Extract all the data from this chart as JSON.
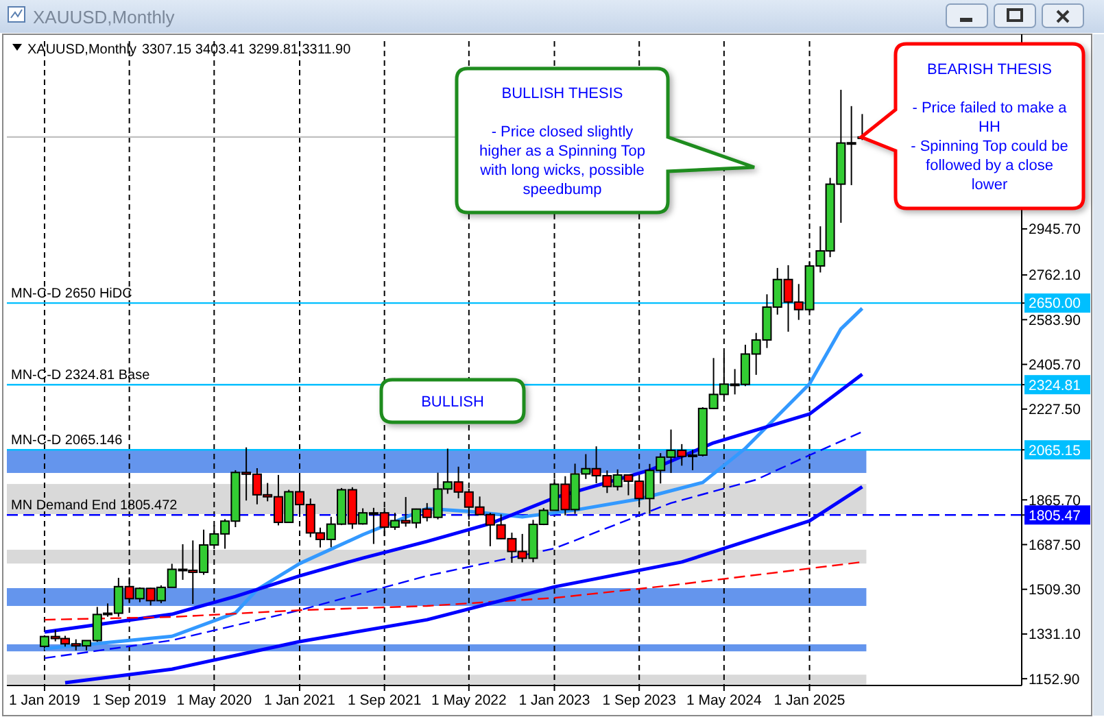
{
  "chart_data": {
    "type": "candlestick",
    "title": "XAUUSD,Monthly",
    "subtitle": "3307.15 3403.41 3299.81 3311.90",
    "colors": [
      "#33cc33",
      "#ff0000",
      "#ff0000",
      "#ff0000",
      "#33cc33",
      "#33cc33",
      "#33cc33",
      "#33cc33",
      "#ff0000",
      "#33cc33",
      "#ff0000",
      "#33cc33",
      "#33cc33",
      "#ff0000",
      "#ff0000",
      "#33cc33",
      "#33cc33",
      "#33cc33",
      "#33cc33",
      "#ff0000",
      "#ff0000",
      "#ff0000",
      "#ff0000",
      "#33cc33",
      "#ff0000",
      "#ff0000",
      "#ff0000",
      "#33cc33",
      "#33cc33",
      "#ff0000",
      "#33cc33",
      "#33cc33",
      "#ff0000",
      "#33cc33",
      "#ff0000",
      "#33cc33",
      "#ff0000",
      "#33cc33",
      "#33cc33",
      "#ff0000",
      "#ff0000",
      "#ff0000",
      "#ff0000",
      "#ff0000",
      "#ff0000",
      "#ff0000",
      "#33cc33",
      "#33cc33",
      "#33cc33",
      "#ff0000",
      "#33cc33",
      "#33cc33",
      "#ff0000",
      "#ff0000",
      "#33cc33",
      "#ff0000",
      "#ff0000",
      "#33cc33",
      "#33cc33",
      "#33cc33",
      "#ff0000",
      "#33cc33",
      "#33cc33",
      "#33cc33",
      "#33cc33",
      "#ff0000",
      "#33cc33",
      "#33cc33",
      "#33cc33",
      "#33cc33",
      "#ff0000",
      "#ff0000",
      "#33cc33",
      "#33cc33",
      "#33cc33",
      "#33cc33",
      "#33cc33",
      "#33cc33"
    ],
    "x": [
      "2019-01",
      "2019-02",
      "2019-03",
      "2019-04",
      "2019-05",
      "2019-06",
      "2019-07",
      "2019-08",
      "2019-09",
      "2019-10",
      "2019-11",
      "2019-12",
      "2020-01",
      "2020-02",
      "2020-03",
      "2020-04",
      "2020-05",
      "2020-06",
      "2020-07",
      "2020-08",
      "2020-09",
      "2020-10",
      "2020-11",
      "2020-12",
      "2021-01",
      "2021-02",
      "2021-03",
      "2021-04",
      "2021-05",
      "2021-06",
      "2021-07",
      "2021-08",
      "2021-09",
      "2021-10",
      "2021-11",
      "2021-12",
      "2022-01",
      "2022-02",
      "2022-03",
      "2022-04",
      "2022-05",
      "2022-06",
      "2022-07",
      "2022-08",
      "2022-09",
      "2022-10",
      "2022-11",
      "2022-12",
      "2023-01",
      "2023-02",
      "2023-03",
      "2023-04",
      "2023-05",
      "2023-06",
      "2023-07",
      "2023-08",
      "2023-09",
      "2023-10",
      "2023-11",
      "2023-12",
      "2024-01",
      "2024-02",
      "2024-03",
      "2024-04",
      "2024-05",
      "2024-06",
      "2024-07",
      "2024-08",
      "2024-09",
      "2024-10",
      "2024-11",
      "2024-12",
      "2025-01",
      "2025-02",
      "2025-03",
      "2025-04",
      "2025-05",
      "2025-06"
    ],
    "ohlc": [
      [
        1282,
        1326,
        1276,
        1321
      ],
      [
        1321,
        1347,
        1302,
        1313
      ],
      [
        1313,
        1324,
        1281,
        1292
      ],
      [
        1292,
        1310,
        1266,
        1284
      ],
      [
        1284,
        1306,
        1266,
        1305
      ],
      [
        1305,
        1439,
        1300,
        1409
      ],
      [
        1409,
        1453,
        1400,
        1414
      ],
      [
        1414,
        1555,
        1400,
        1520
      ],
      [
        1520,
        1557,
        1459,
        1472
      ],
      [
        1472,
        1517,
        1458,
        1513
      ],
      [
        1513,
        1515,
        1445,
        1464
      ],
      [
        1464,
        1525,
        1454,
        1517
      ],
      [
        1517,
        1611,
        1517,
        1589
      ],
      [
        1589,
        1689,
        1547,
        1585
      ],
      [
        1585,
        1704,
        1451,
        1577
      ],
      [
        1577,
        1747,
        1567,
        1686
      ],
      [
        1686,
        1765,
        1670,
        1730
      ],
      [
        1730,
        1789,
        1671,
        1781
      ],
      [
        1781,
        1984,
        1757,
        1975
      ],
      [
        1975,
        2075,
        1863,
        1968
      ],
      [
        1968,
        1992,
        1848,
        1886
      ],
      [
        1886,
        1933,
        1860,
        1878
      ],
      [
        1878,
        1965,
        1764,
        1776
      ],
      [
        1776,
        1906,
        1775,
        1898
      ],
      [
        1898,
        1959,
        1802,
        1847
      ],
      [
        1847,
        1871,
        1717,
        1734
      ],
      [
        1734,
        1755,
        1676,
        1708
      ],
      [
        1708,
        1798,
        1677,
        1769
      ],
      [
        1769,
        1913,
        1765,
        1906
      ],
      [
        1906,
        1916,
        1750,
        1770
      ],
      [
        1770,
        1832,
        1767,
        1814
      ],
      [
        1814,
        1834,
        1690,
        1814
      ],
      [
        1814,
        1834,
        1721,
        1757
      ],
      [
        1757,
        1814,
        1746,
        1783
      ],
      [
        1783,
        1877,
        1759,
        1774
      ],
      [
        1774,
        1831,
        1753,
        1829
      ],
      [
        1829,
        1853,
        1780,
        1796
      ],
      [
        1796,
        1974,
        1788,
        1909
      ],
      [
        1909,
        2070,
        1890,
        1937
      ],
      [
        1937,
        1998,
        1872,
        1897
      ],
      [
        1897,
        1910,
        1787,
        1837
      ],
      [
        1837,
        1879,
        1805,
        1807
      ],
      [
        1807,
        1814,
        1681,
        1766
      ],
      [
        1766,
        1808,
        1709,
        1711
      ],
      [
        1711,
        1735,
        1615,
        1660
      ],
      [
        1660,
        1730,
        1617,
        1633
      ],
      [
        1633,
        1786,
        1617,
        1768
      ],
      [
        1768,
        1833,
        1765,
        1824
      ],
      [
        1824,
        1949,
        1823,
        1928
      ],
      [
        1928,
        1960,
        1804,
        1827
      ],
      [
        1827,
        2010,
        1810,
        1969
      ],
      [
        1969,
        2048,
        1949,
        1990
      ],
      [
        1990,
        2079,
        1932,
        1962
      ],
      [
        1962,
        1983,
        1893,
        1919
      ],
      [
        1919,
        1987,
        1903,
        1965
      ],
      [
        1965,
        1966,
        1884,
        1940
      ],
      [
        1940,
        1953,
        1848,
        1871
      ],
      [
        1871,
        2009,
        1810,
        1983
      ],
      [
        1983,
        2052,
        1931,
        2036
      ],
      [
        2036,
        2146,
        1973,
        2063
      ],
      [
        2063,
        2088,
        2002,
        2039
      ],
      [
        2039,
        2065,
        1984,
        2044
      ],
      [
        2044,
        2235,
        2039,
        2230
      ],
      [
        2230,
        2431,
        2228,
        2286
      ],
      [
        2286,
        2450,
        2277,
        2327
      ],
      [
        2327,
        2387,
        2286,
        2326
      ],
      [
        2326,
        2484,
        2319,
        2447
      ],
      [
        2447,
        2531,
        2364,
        2503
      ],
      [
        2503,
        2685,
        2471,
        2634
      ],
      [
        2634,
        2790,
        2604,
        2744
      ],
      [
        2744,
        2801,
        2536,
        2654
      ],
      [
        2654,
        2726,
        2583,
        2624
      ],
      [
        2624,
        2817,
        2614,
        2798
      ],
      [
        2798,
        2956,
        2772,
        2858
      ],
      [
        2858,
        3149,
        2833,
        3124
      ],
      [
        3124,
        3500,
        2970,
        3288
      ],
      [
        3288,
        3435,
        3120,
        3289
      ],
      [
        3307.15,
        3403.41,
        3299.81,
        3311.9
      ]
    ],
    "series": [
      {
        "type": "line",
        "color": "#3399ff",
        "line_style": "solid",
        "x": [
          "2019-01",
          "2020-01",
          "2020-07",
          "2020-09",
          "2021-01",
          "2021-07",
          "2022-01",
          "2022-05",
          "2022-10",
          "2023-03",
          "2023-09",
          "2024-03",
          "2024-07",
          "2025-01",
          "2025-04",
          "2025-06"
        ],
        "values": [
          1273,
          1322,
          1415,
          1508,
          1612,
          1727,
          1831,
          1820,
          1798,
          1825,
          1869,
          1935,
          2071,
          2328,
          2547,
          2629
        ]
      },
      {
        "type": "line",
        "color": "#0000ff",
        "line_style": "solid",
        "x": [
          "2019-01",
          "2020-01",
          "2020-07",
          "2021-01",
          "2021-07",
          "2022-01",
          "2022-07",
          "2023-01",
          "2023-10",
          "2024-04",
          "2025-01",
          "2025-06"
        ],
        "values": [
          1339,
          1410,
          1481,
          1563,
          1634,
          1700,
          1771,
          1874,
          1984,
          2093,
          2208,
          2366
        ]
      },
      {
        "type": "line",
        "color": "#0000ff",
        "line_style": "dashed",
        "x": [
          "2019-01",
          "2020-01",
          "2021-01",
          "2022-01",
          "2023-01",
          "2023-12",
          "2024-08",
          "2025-01",
          "2025-06"
        ],
        "values": [
          1235,
          1306,
          1426,
          1563,
          1672,
          1853,
          1946,
          2044,
          2137
        ]
      },
      {
        "type": "line",
        "color": "#ff0000",
        "line_style": "dashed",
        "x": [
          "2019-01",
          "2020-01",
          "2021-01",
          "2022-01",
          "2023-01",
          "2023-12",
          "2025-06"
        ],
        "values": [
          1388,
          1399,
          1426,
          1443,
          1475,
          1525,
          1618
        ]
      },
      {
        "type": "line",
        "color": "#0000ff",
        "line_style": "solid",
        "x": [
          "2019-03",
          "2020-01",
          "2021-01",
          "2022-01",
          "2023-01",
          "2024-01",
          "2025-01",
          "2025-06"
        ],
        "values": [
          1137,
          1191,
          1301,
          1388,
          1519,
          1618,
          1782,
          1918
        ]
      }
    ],
    "bands": [
      {
        "axis": "y",
        "from": 1973,
        "to": 2065,
        "color": "#6495ed"
      },
      {
        "axis": "y",
        "from": 1809,
        "to": 1929,
        "color": "#d9d9d9"
      },
      {
        "axis": "y",
        "from": 1612,
        "to": 1667,
        "color": "#d9d9d9"
      },
      {
        "axis": "y",
        "from": 1443,
        "to": 1514,
        "color": "#6495ed"
      },
      {
        "axis": "y",
        "from": 1262,
        "to": 1290,
        "color": "#6495ed"
      },
      {
        "axis": "y",
        "from": 1130,
        "to": 1169,
        "color": "#d9d9d9"
      }
    ],
    "ref_lines": [
      {
        "axis": "y",
        "value": 2650,
        "label": "MN-C-D 2650 HiDC",
        "color": "#00bfff",
        "line_style": "solid"
      },
      {
        "axis": "y",
        "value": 2324.81,
        "label": "MN-C-D 2324.81 Base",
        "color": "#00bfff",
        "line_style": "solid"
      },
      {
        "axis": "y",
        "value": 2065.146,
        "label": "MN-C-D 2065.146",
        "color": "#00bfff",
        "line_style": "solid"
      },
      {
        "axis": "y",
        "value": 1805.472,
        "label": "MN Demand End 1805.472",
        "color": "#0000ff",
        "line_style": "dashed"
      },
      {
        "axis": "y",
        "value": 3311.9,
        "color": "#c0c0c0",
        "line_style": "solid"
      }
    ],
    "xlim": [
      "2018-09-15",
      "2026-09-01"
    ],
    "ylim": [
      1126,
      3694
    ],
    "xticks": [
      {
        "value": "2019-01",
        "label": "1 Jan 2019"
      },
      {
        "value": "2019-09",
        "label": "1 Sep 2019"
      },
      {
        "value": "2020-05",
        "label": "1 May 2020"
      },
      {
        "value": "2021-01",
        "label": "1 Jan 2021"
      },
      {
        "value": "2021-09",
        "label": "1 Sep 2021"
      },
      {
        "value": "2022-05",
        "label": "1 May 2022"
      },
      {
        "value": "2023-01",
        "label": "1 Jan 2023"
      },
      {
        "value": "2023-09",
        "label": "1 Sep 2023"
      },
      {
        "value": "2024-05",
        "label": "1 May 2024"
      },
      {
        "value": "2025-01",
        "label": "1 Jan 2025"
      }
    ],
    "yticks": [
      {
        "value": 1152.9,
        "label": "1152.90"
      },
      {
        "value": 1331.1,
        "label": "1331.10"
      },
      {
        "value": 1509.3,
        "label": "1509.30"
      },
      {
        "value": 1687.5,
        "label": "1687.50"
      },
      {
        "value": 1805.472,
        "label": "1805.47"
      },
      {
        "value": 1865.7,
        "label": "1865.70"
      },
      {
        "value": 2065.146,
        "label": "2065.15"
      },
      {
        "value": 2227.5,
        "label": "2227.50"
      },
      {
        "value": 2324.81,
        "label": "2324.81"
      },
      {
        "value": 2405.7,
        "label": "2405.70"
      },
      {
        "value": 2583.9,
        "label": "2583.90"
      },
      {
        "value": 2650,
        "label": "2650.00"
      },
      {
        "value": 2762.1,
        "label": "2762.10"
      },
      {
        "value": 2945.7,
        "label": "2945.70"
      }
    ],
    "grid": "x",
    "annotations": [
      "BULLISH THESIS\n\n- Price closed slightly higher as a Spinning Top with long wicks, possible speedbump",
      "BEARISH THESIS\n\n- Price failed to make a HH\n- Spinning Top could be followed by a close lower",
      "BULLISH"
    ]
  }
}
